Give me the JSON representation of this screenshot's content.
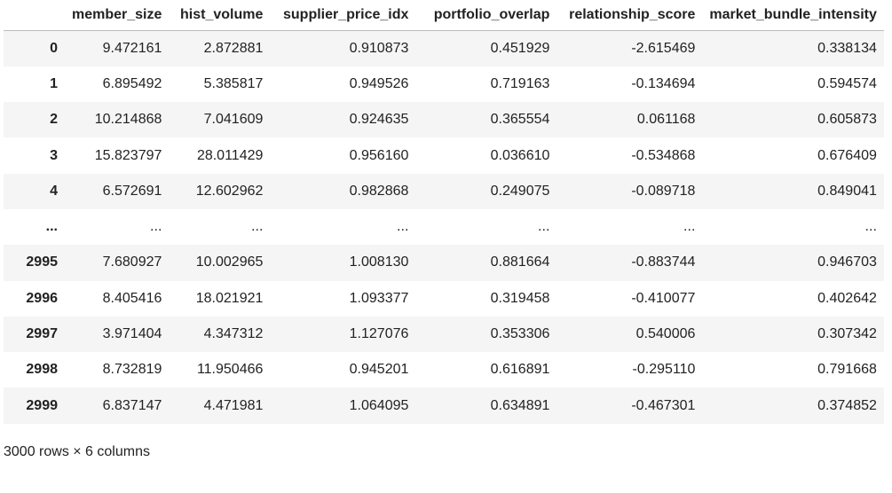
{
  "table": {
    "index_header": "",
    "columns": [
      "member_size",
      "hist_volume",
      "supplier_price_idx",
      "portfolio_overlap",
      "relationship_score",
      "market_bundle_intensity"
    ],
    "rows": [
      {
        "index": "0",
        "cells": [
          "9.472161",
          "2.872881",
          "0.910873",
          "0.451929",
          "-2.615469",
          "0.338134"
        ]
      },
      {
        "index": "1",
        "cells": [
          "6.895492",
          "5.385817",
          "0.949526",
          "0.719163",
          "-0.134694",
          "0.594574"
        ]
      },
      {
        "index": "2",
        "cells": [
          "10.214868",
          "7.041609",
          "0.924635",
          "0.365554",
          "0.061168",
          "0.605873"
        ]
      },
      {
        "index": "3",
        "cells": [
          "15.823797",
          "28.011429",
          "0.956160",
          "0.036610",
          "-0.534868",
          "0.676409"
        ]
      },
      {
        "index": "4",
        "cells": [
          "6.572691",
          "12.602962",
          "0.982868",
          "0.249075",
          "-0.089718",
          "0.849041"
        ]
      },
      {
        "index": "...",
        "cells": [
          "...",
          "...",
          "...",
          "...",
          "...",
          "..."
        ]
      },
      {
        "index": "2995",
        "cells": [
          "7.680927",
          "10.002965",
          "1.008130",
          "0.881664",
          "-0.883744",
          "0.946703"
        ]
      },
      {
        "index": "2996",
        "cells": [
          "8.405416",
          "18.021921",
          "1.093377",
          "0.319458",
          "-0.410077",
          "0.402642"
        ]
      },
      {
        "index": "2997",
        "cells": [
          "3.971404",
          "4.347312",
          "1.127076",
          "0.353306",
          "0.540006",
          "0.307342"
        ]
      },
      {
        "index": "2998",
        "cells": [
          "8.732819",
          "11.950466",
          "0.945201",
          "0.616891",
          "-0.295110",
          "0.791668"
        ]
      },
      {
        "index": "2999",
        "cells": [
          "6.837147",
          "4.471981",
          "1.064095",
          "0.634891",
          "-0.467301",
          "0.374852"
        ]
      }
    ]
  },
  "footer": {
    "shape_text": "3000 rows × 6 columns"
  }
}
